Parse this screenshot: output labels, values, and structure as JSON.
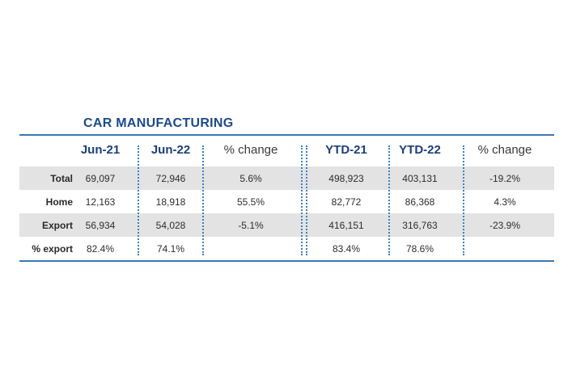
{
  "title": "CAR MANUFACTURING",
  "chart_data": {
    "type": "table",
    "title": "CAR MANUFACTURING",
    "columns": [
      "",
      "Jun-21",
      "Jun-22",
      "% change",
      "YTD-21",
      "YTD-22",
      "% change"
    ],
    "rows": [
      {
        "label": "Total",
        "values": [
          "69,097",
          "72,946",
          "5.6%",
          "498,923",
          "403,131",
          "-19.2%"
        ]
      },
      {
        "label": "Home",
        "values": [
          "12,163",
          "18,918",
          "55.5%",
          "82,772",
          "86,368",
          "4.3%"
        ]
      },
      {
        "label": "Export",
        "values": [
          "56,934",
          "54,028",
          "-5.1%",
          "416,151",
          "316,763",
          "-23.9%"
        ]
      },
      {
        "label": "% export",
        "values": [
          "82.4%",
          "74.1%",
          "",
          "83.4%",
          "78.6%",
          ""
        ]
      }
    ],
    "shaded_rows": [
      "Total",
      "Export"
    ]
  },
  "colors": {
    "title": "#1c4b8a",
    "rule": "#3a78b4",
    "separator": "#3a82c4",
    "band": "#e3e3e3",
    "header_bold": "#1c3f7a"
  }
}
